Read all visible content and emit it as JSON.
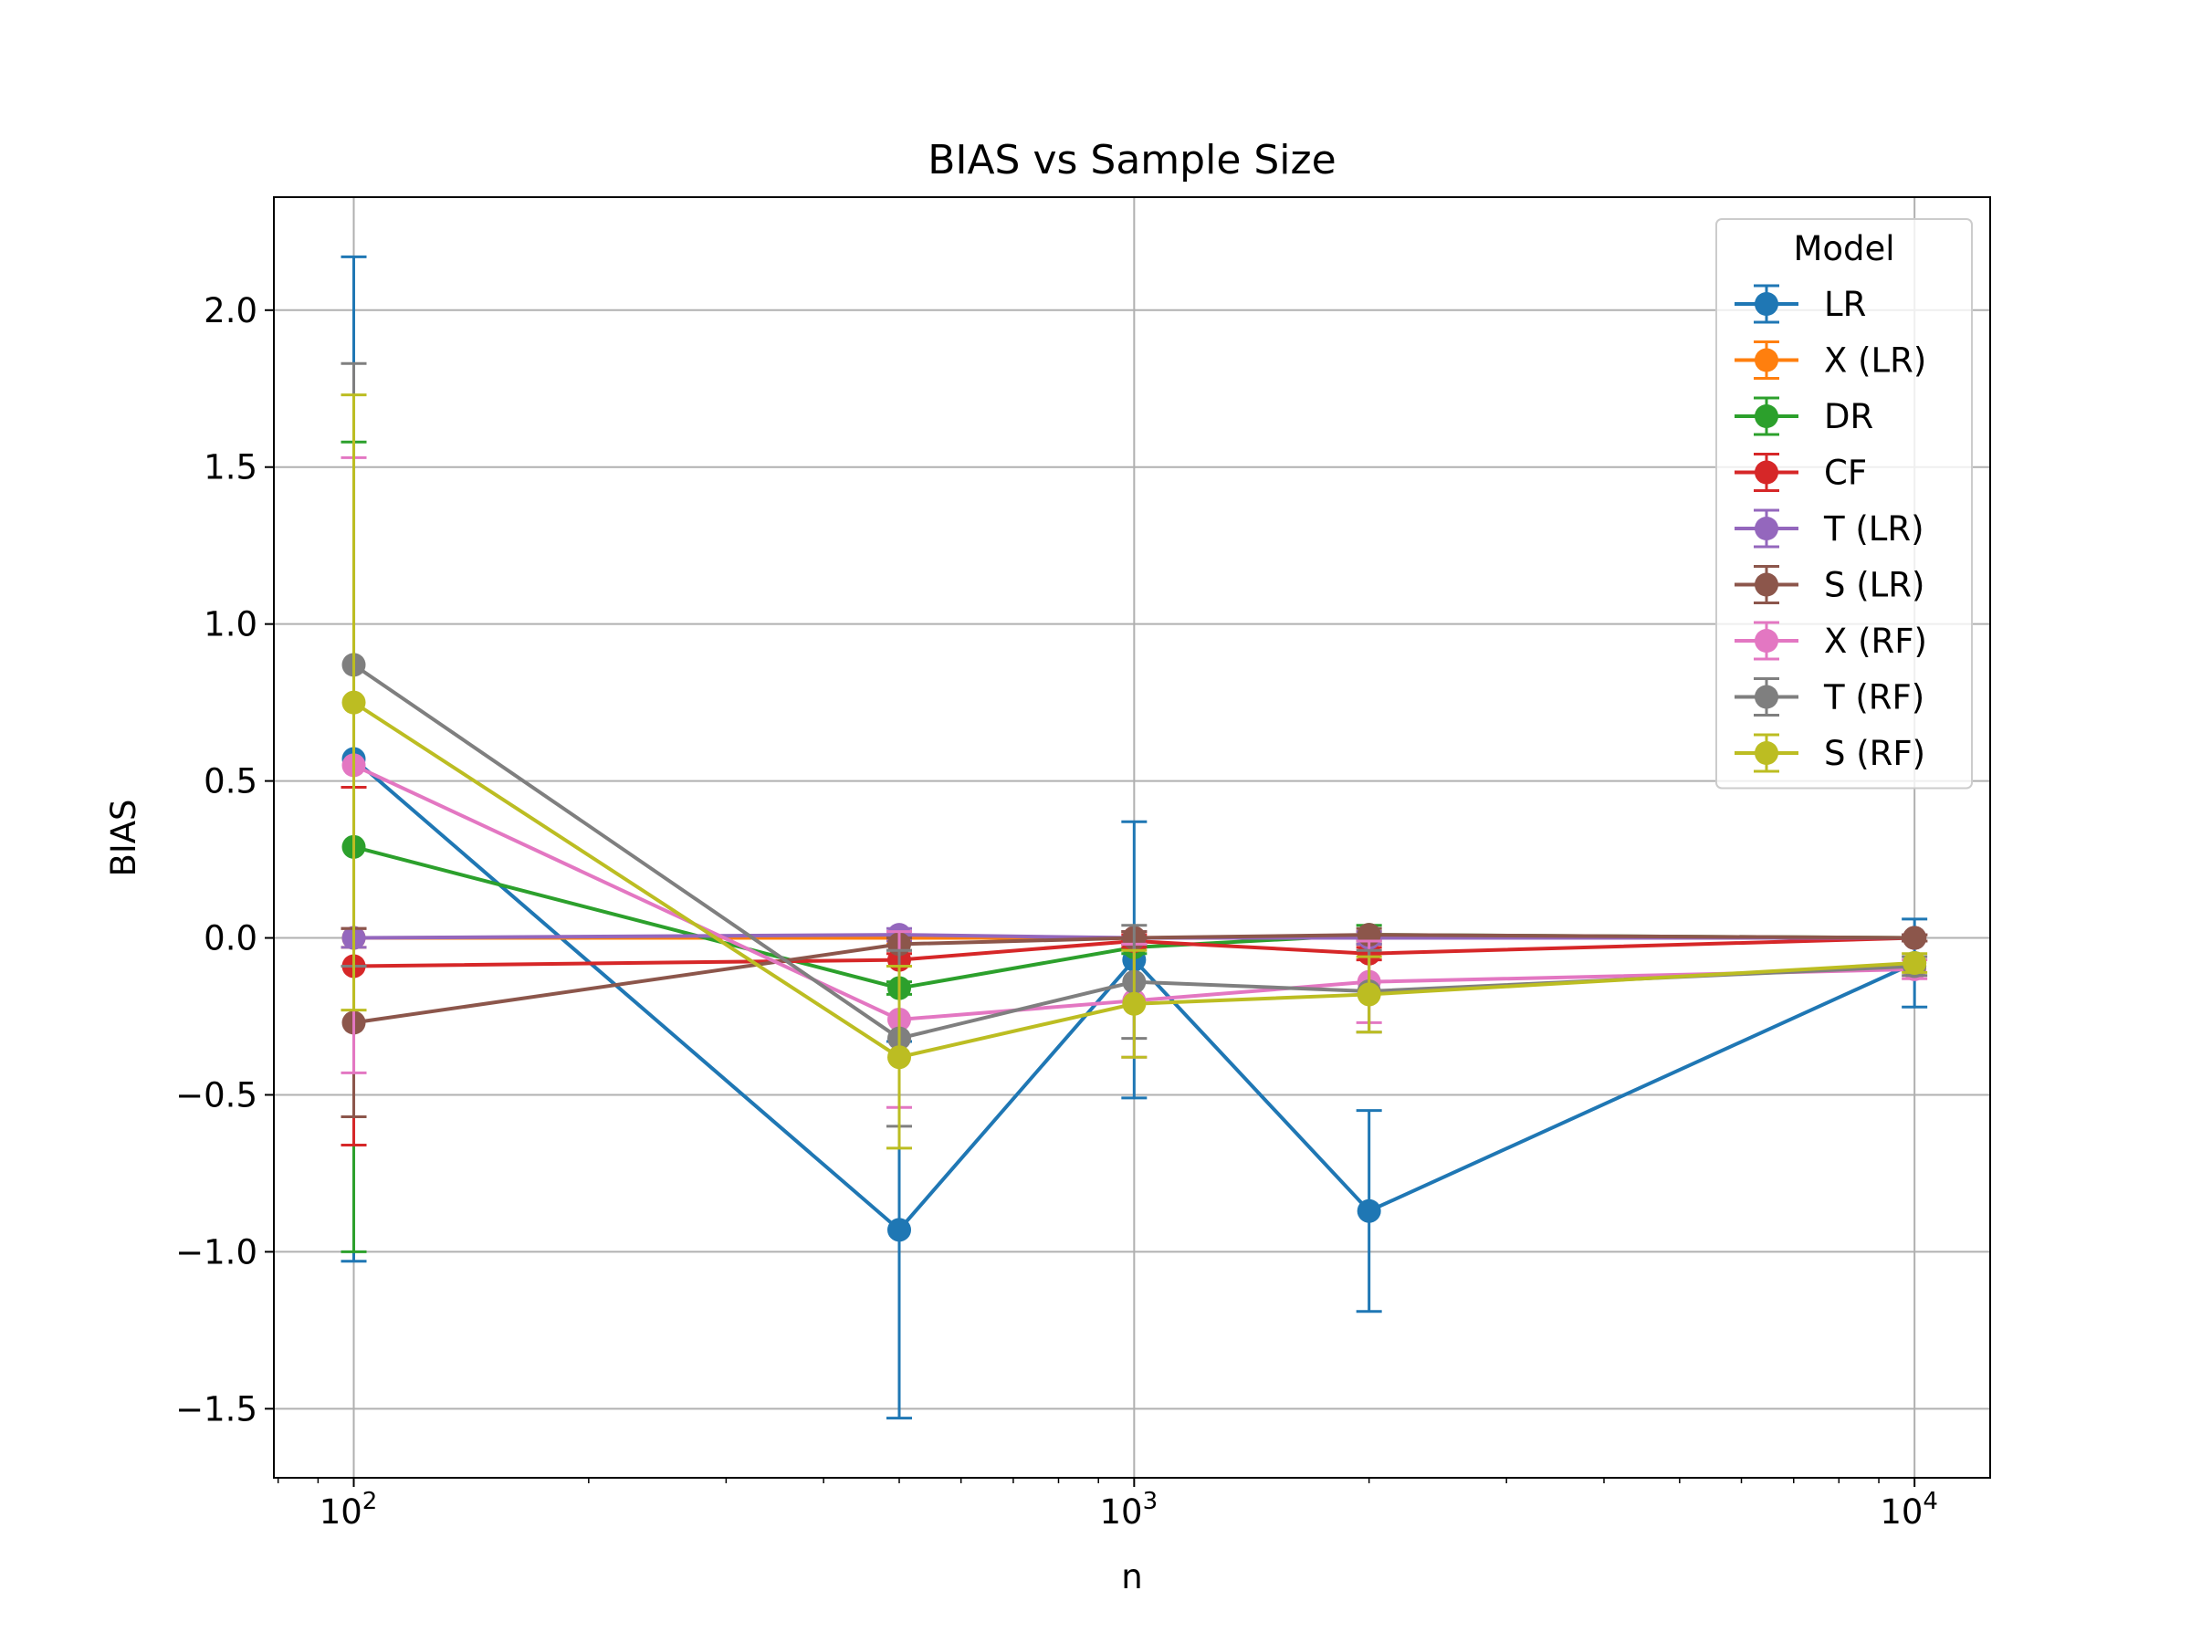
{
  "chart_data": {
    "type": "line",
    "title": "BIAS vs Sample Size",
    "xlabel": "n",
    "ylabel": "BIAS",
    "x_scale": "log",
    "xlim": [
      79,
      12500
    ],
    "ylim": [
      -1.72,
      2.36
    ],
    "x_ticks": [
      {
        "value": 100,
        "base": "10",
        "exp": "2"
      },
      {
        "value": 1000,
        "base": "10",
        "exp": "3"
      },
      {
        "value": 10000,
        "base": "10",
        "exp": "4"
      }
    ],
    "y_ticks": [
      {
        "value": -1.5,
        "label": "−1.5"
      },
      {
        "value": -1.0,
        "label": "−1.0"
      },
      {
        "value": -0.5,
        "label": "−0.5"
      },
      {
        "value": 0.0,
        "label": "0.0"
      },
      {
        "value": 0.5,
        "label": "0.5"
      },
      {
        "value": 1.0,
        "label": "1.0"
      },
      {
        "value": 1.5,
        "label": "1.5"
      },
      {
        "value": 2.0,
        "label": "2.0"
      }
    ],
    "grid": true,
    "legend_title": "Model",
    "legend_position": "upper right",
    "x": [
      100,
      500,
      1000,
      2000,
      10000
    ],
    "series": [
      {
        "name": "LR",
        "color": "#1f77b4",
        "values": [
          0.57,
          -0.93,
          -0.07,
          -0.87,
          -0.08
        ],
        "errors": [
          1.6,
          0.6,
          0.44,
          0.32,
          0.14
        ]
      },
      {
        "name": "X (LR)",
        "color": "#ff7f0e",
        "values": [
          0.0,
          0.0,
          0.0,
          0.0,
          0.0
        ],
        "errors": [
          0.03,
          0.02,
          0.02,
          0.02,
          0.01
        ]
      },
      {
        "name": "DR",
        "color": "#2ca02c",
        "values": [
          0.29,
          -0.16,
          -0.03,
          0.01,
          0.0
        ],
        "errors": [
          1.29,
          0.02,
          0.02,
          0.03,
          0.01
        ]
      },
      {
        "name": "CF",
        "color": "#d62728",
        "values": [
          -0.09,
          -0.07,
          -0.01,
          -0.05,
          0.0
        ],
        "errors": [
          0.57,
          0.02,
          0.02,
          0.02,
          0.01
        ]
      },
      {
        "name": "T (LR)",
        "color": "#9467bd",
        "values": [
          0.0,
          0.01,
          0.0,
          0.0,
          0.0
        ],
        "errors": [
          0.03,
          0.02,
          0.02,
          0.02,
          0.01
        ]
      },
      {
        "name": "S (LR)",
        "color": "#8c564b",
        "values": [
          -0.27,
          -0.02,
          0.0,
          0.01,
          0.0
        ],
        "errors": [
          0.3,
          0.02,
          0.02,
          0.02,
          0.01
        ]
      },
      {
        "name": "X (RF)",
        "color": "#e377c2",
        "values": [
          0.55,
          -0.26,
          -0.2,
          -0.14,
          -0.1
        ],
        "errors": [
          0.98,
          0.28,
          0.18,
          0.13,
          0.03
        ]
      },
      {
        "name": "T (RF)",
        "color": "#7f7f7f",
        "values": [
          0.87,
          -0.32,
          -0.14,
          -0.17,
          -0.09
        ],
        "errors": [
          0.96,
          0.28,
          0.18,
          0.13,
          0.03
        ]
      },
      {
        "name": "S (RF)",
        "color": "#bcbd22",
        "values": [
          0.75,
          -0.38,
          -0.21,
          -0.18,
          -0.08
        ],
        "errors": [
          0.98,
          0.29,
          0.17,
          0.12,
          0.03
        ]
      }
    ]
  }
}
